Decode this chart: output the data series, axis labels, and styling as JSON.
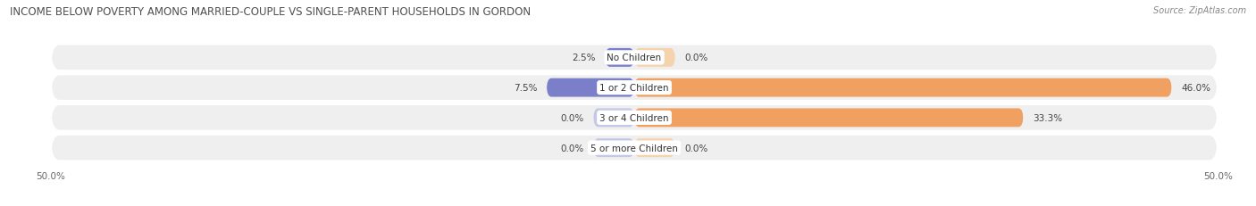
{
  "title": "INCOME BELOW POVERTY AMONG MARRIED-COUPLE VS SINGLE-PARENT HOUSEHOLDS IN GORDON",
  "source": "Source: ZipAtlas.com",
  "categories": [
    "No Children",
    "1 or 2 Children",
    "3 or 4 Children",
    "5 or more Children"
  ],
  "married_values": [
    2.5,
    7.5,
    0.0,
    0.0
  ],
  "single_values": [
    0.0,
    46.0,
    33.3,
    0.0
  ],
  "married_color_strong": "#7b7ec8",
  "married_color_light": "#c5c7e8",
  "single_color_strong": "#f0a060",
  "single_color_light": "#f5d4ad",
  "row_bg_color": "#efefef",
  "xlim": 50.0,
  "title_fontsize": 8.5,
  "source_fontsize": 7,
  "label_fontsize": 7.5,
  "tick_fontsize": 7.5,
  "cat_fontsize": 7.5,
  "value_fontsize": 7.5
}
